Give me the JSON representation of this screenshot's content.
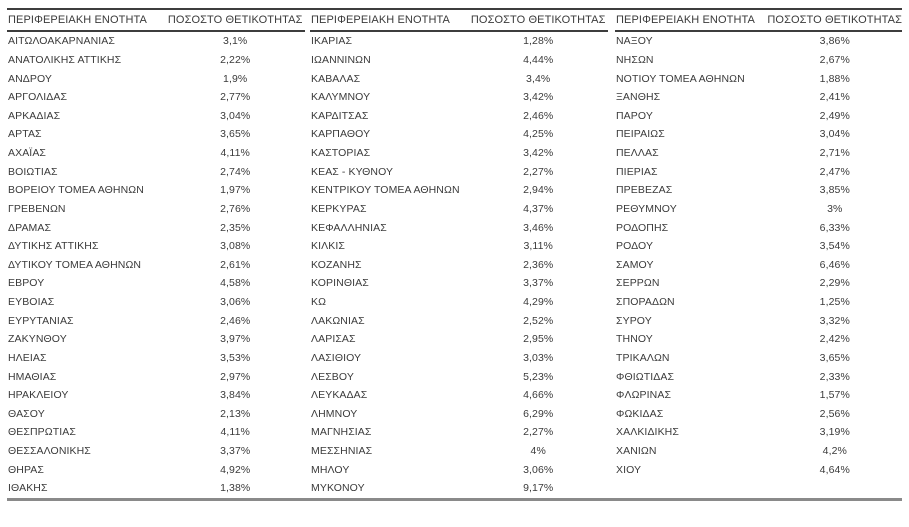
{
  "page": {
    "background_color": "#ffffff",
    "text_color": "#3a3a3a",
    "rule_dark_color": "#3d3d3d",
    "rule_gray_color": "#8a8a8a"
  },
  "table": {
    "column_header_region": "ΠΕΡΙΦΕΡΕΙΑΚΗ ΕΝΟΤΗΤΑ",
    "column_header_positivity": "ΠΟΣΟΣΤΟ ΘΕΤΙΚΟΤΗΤΑΣ",
    "panels": [
      {
        "rows": [
          {
            "region": "ΑΙΤΩΛΟΑΚΑΡΝΑΝΙΑΣ",
            "positivity": "3,1%"
          },
          {
            "region": "ΑΝΑΤΟΛΙΚΗΣ ΑΤΤΙΚΗΣ",
            "positivity": "2,22%"
          },
          {
            "region": "ΑΝΔΡΟΥ",
            "positivity": "1,9%"
          },
          {
            "region": "ΑΡΓΟΛΙΔΑΣ",
            "positivity": "2,77%"
          },
          {
            "region": "ΑΡΚΑΔΙΑΣ",
            "positivity": "3,04%"
          },
          {
            "region": "ΑΡΤΑΣ",
            "positivity": "3,65%"
          },
          {
            "region": "ΑΧΑΪΑΣ",
            "positivity": "4,11%"
          },
          {
            "region": "ΒΟΙΩΤΙΑΣ",
            "positivity": "2,74%"
          },
          {
            "region": "ΒΟΡΕΙΟΥ ΤΟΜΕΑ ΑΘΗΝΩΝ",
            "positivity": "1,97%"
          },
          {
            "region": "ΓΡΕΒΕΝΩΝ",
            "positivity": "2,76%"
          },
          {
            "region": "ΔΡΑΜΑΣ",
            "positivity": "2,35%"
          },
          {
            "region": "ΔΥΤΙΚΗΣ ΑΤΤΙΚΗΣ",
            "positivity": "3,08%"
          },
          {
            "region": "ΔΥΤΙΚΟΥ ΤΟΜΕΑ ΑΘΗΝΩΝ",
            "positivity": "2,61%"
          },
          {
            "region": "ΕΒΡΟΥ",
            "positivity": "4,58%"
          },
          {
            "region": "ΕΥΒΟΙΑΣ",
            "positivity": "3,06%"
          },
          {
            "region": "ΕΥΡΥΤΑΝΙΑΣ",
            "positivity": "2,46%"
          },
          {
            "region": "ΖΑΚΥΝΘΟΥ",
            "positivity": "3,97%"
          },
          {
            "region": "ΗΛΕΙΑΣ",
            "positivity": "3,53%"
          },
          {
            "region": "ΗΜΑΘΙΑΣ",
            "positivity": "2,97%"
          },
          {
            "region": "ΗΡΑΚΛΕΙΟΥ",
            "positivity": "3,84%"
          },
          {
            "region": "ΘΑΣΟΥ",
            "positivity": "2,13%"
          },
          {
            "region": "ΘΕΣΠΡΩΤΙΑΣ",
            "positivity": "4,11%"
          },
          {
            "region": "ΘΕΣΣΑΛΟΝΙΚΗΣ",
            "positivity": "3,37%"
          },
          {
            "region": "ΘΗΡΑΣ",
            "positivity": "4,92%"
          },
          {
            "region": "ΙΘΑΚΗΣ",
            "positivity": "1,38%"
          }
        ]
      },
      {
        "rows": [
          {
            "region": "ΙΚΑΡΙΑΣ",
            "positivity": "1,28%"
          },
          {
            "region": "ΙΩΑΝΝΙΝΩΝ",
            "positivity": "4,44%"
          },
          {
            "region": "ΚΑΒΑΛΑΣ",
            "positivity": "3,4%"
          },
          {
            "region": "ΚΑΛΥΜΝΟΥ",
            "positivity": "3,42%"
          },
          {
            "region": "ΚΑΡΔΙΤΣΑΣ",
            "positivity": "2,46%"
          },
          {
            "region": "ΚΑΡΠΑΘΟΥ",
            "positivity": "4,25%"
          },
          {
            "region": "ΚΑΣΤΟΡΙΑΣ",
            "positivity": "3,42%"
          },
          {
            "region": "ΚΕΑΣ - ΚΥΘΝΟΥ",
            "positivity": "2,27%"
          },
          {
            "region": "ΚΕΝΤΡΙΚΟΥ ΤΟΜΕΑ ΑΘΗΝΩΝ",
            "positivity": "2,94%"
          },
          {
            "region": "ΚΕΡΚΥΡΑΣ",
            "positivity": "4,37%"
          },
          {
            "region": "ΚΕΦΑΛΛΗΝΙΑΣ",
            "positivity": "3,46%"
          },
          {
            "region": "ΚΙΛΚΙΣ",
            "positivity": "3,11%"
          },
          {
            "region": "ΚΟΖΑΝΗΣ",
            "positivity": "2,36%"
          },
          {
            "region": "ΚΟΡΙΝΘΙΑΣ",
            "positivity": "3,37%"
          },
          {
            "region": "ΚΩ",
            "positivity": "4,29%"
          },
          {
            "region": "ΛΑΚΩΝΙΑΣ",
            "positivity": "2,52%"
          },
          {
            "region": "ΛΑΡΙΣΑΣ",
            "positivity": "2,95%"
          },
          {
            "region": "ΛΑΣΙΘΙΟΥ",
            "positivity": "3,03%"
          },
          {
            "region": "ΛΕΣΒΟΥ",
            "positivity": "5,23%"
          },
          {
            "region": "ΛΕΥΚΑΔΑΣ",
            "positivity": "4,66%"
          },
          {
            "region": "ΛΗΜΝΟΥ",
            "positivity": "6,29%"
          },
          {
            "region": "ΜΑΓΝΗΣΙΑΣ",
            "positivity": "2,27%"
          },
          {
            "region": "ΜΕΣΣΗΝΙΑΣ",
            "positivity": "4%"
          },
          {
            "region": "ΜΗΛΟΥ",
            "positivity": "3,06%"
          },
          {
            "region": "ΜΥΚΟΝΟΥ",
            "positivity": "9,17%"
          }
        ]
      },
      {
        "rows": [
          {
            "region": "ΝΑΞΟΥ",
            "positivity": "3,86%"
          },
          {
            "region": "ΝΗΣΩΝ",
            "positivity": "2,67%"
          },
          {
            "region": "ΝΟΤΙΟΥ ΤΟΜΕΑ ΑΘΗΝΩΝ",
            "positivity": "1,88%"
          },
          {
            "region": "ΞΑΝΘΗΣ",
            "positivity": "2,41%"
          },
          {
            "region": "ΠΑΡΟΥ",
            "positivity": "2,49%"
          },
          {
            "region": "ΠΕΙΡΑΙΩΣ",
            "positivity": "3,04%"
          },
          {
            "region": "ΠΕΛΛΑΣ",
            "positivity": "2,71%"
          },
          {
            "region": "ΠΙΕΡΙΑΣ",
            "positivity": "2,47%"
          },
          {
            "region": "ΠΡΕΒΕΖΑΣ",
            "positivity": "3,85%"
          },
          {
            "region": "ΡΕΘΥΜΝΟΥ",
            "positivity": "3%"
          },
          {
            "region": "ΡΟΔΟΠΗΣ",
            "positivity": "6,33%"
          },
          {
            "region": "ΡΟΔΟΥ",
            "positivity": "3,54%"
          },
          {
            "region": "ΣΑΜΟΥ",
            "positivity": "6,46%"
          },
          {
            "region": "ΣΕΡΡΩΝ",
            "positivity": "2,29%"
          },
          {
            "region": "ΣΠΟΡΑΔΩΝ",
            "positivity": "1,25%"
          },
          {
            "region": "ΣΥΡΟΥ",
            "positivity": "3,32%"
          },
          {
            "region": "ΤΗΝΟΥ",
            "positivity": "2,42%"
          },
          {
            "region": "ΤΡΙΚΑΛΩΝ",
            "positivity": "3,65%"
          },
          {
            "region": "ΦΘΙΩΤΙΔΑΣ",
            "positivity": "2,33%"
          },
          {
            "region": "ΦΛΩΡΙΝΑΣ",
            "positivity": "1,57%"
          },
          {
            "region": "ΦΩΚΙΔΑΣ",
            "positivity": "2,56%"
          },
          {
            "region": "ΧΑΛΚΙΔΙΚΗΣ",
            "positivity": "3,19%"
          },
          {
            "region": "ΧΑΝΙΩΝ",
            "positivity": "4,2%"
          },
          {
            "region": "ΧΙΟΥ",
            "positivity": "4,64%"
          }
        ]
      }
    ]
  }
}
